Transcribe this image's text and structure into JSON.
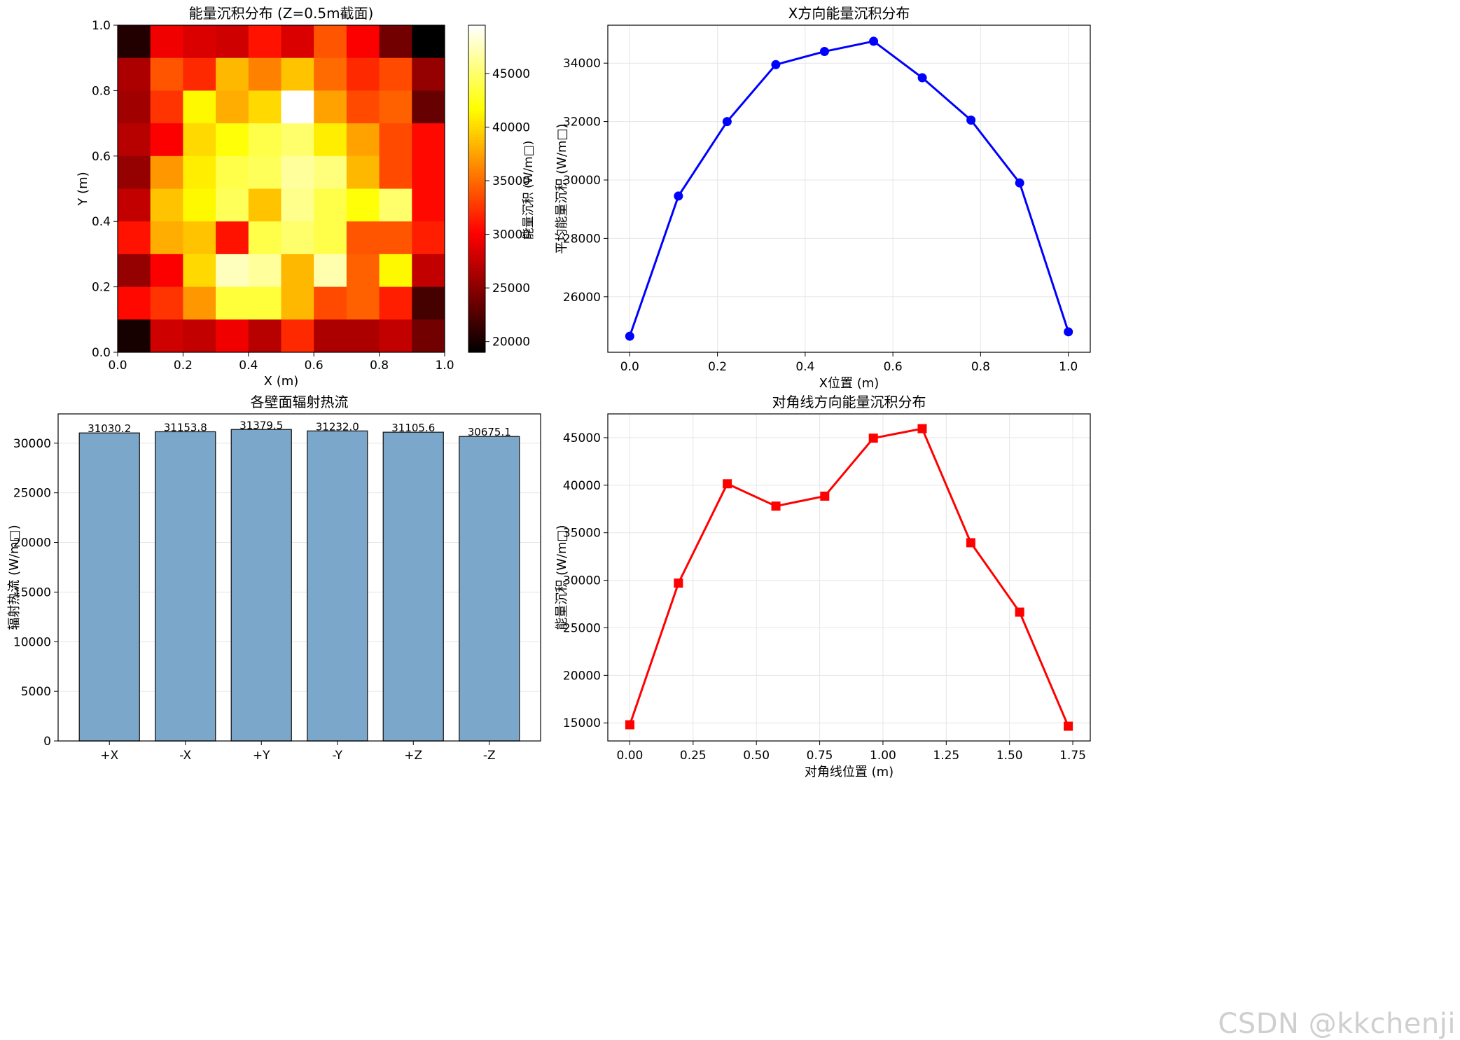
{
  "watermark": "CSDN @kkchenji",
  "chart_data": [
    {
      "type": "heatmap",
      "title": "能量沉积分布 (Z=0.5m截面)",
      "xlabel": "X (m)",
      "ylabel": "Y (m)",
      "xlim": [
        0,
        1
      ],
      "ylim": [
        0,
        1
      ],
      "xticks": [
        "0.0",
        "0.2",
        "0.4",
        "0.6",
        "0.8",
        "1.0"
      ],
      "yticks": [
        "0.0",
        "0.2",
        "0.4",
        "0.6",
        "0.8",
        "1.0"
      ],
      "colormap": "hot",
      "vmin": 19000,
      "vmax": 49500,
      "colorbar_label": "能量沉积 (W/m□)",
      "colorbar_ticks": [
        "20000",
        "25000",
        "30000",
        "35000",
        "40000",
        "45000"
      ],
      "rows_top_to_bottom": [
        [
          20500,
          29500,
          28500,
          28000,
          31000,
          28500,
          34000,
          30000,
          24000,
          19000
        ],
        [
          26500,
          34000,
          32000,
          38500,
          36000,
          39000,
          35000,
          32000,
          33500,
          25500
        ],
        [
          26000,
          32500,
          41500,
          38000,
          40000,
          49500,
          37500,
          33500,
          34500,
          23500
        ],
        [
          27000,
          30000,
          40000,
          42000,
          44000,
          45000,
          41000,
          37500,
          33500,
          30500
        ],
        [
          25500,
          37000,
          41000,
          44000,
          44500,
          46500,
          45500,
          38500,
          33500,
          30500
        ],
        [
          27500,
          39000,
          41500,
          44500,
          39000,
          46000,
          44000,
          42000,
          45000,
          30500
        ],
        [
          31000,
          38000,
          39000,
          31000,
          44000,
          45000,
          44000,
          34000,
          34000,
          31500
        ],
        [
          25500,
          30000,
          40000,
          47500,
          46500,
          38500,
          47000,
          34500,
          41500,
          27500
        ],
        [
          30500,
          32500,
          37000,
          43500,
          43500,
          38500,
          33500,
          34500,
          31500,
          22000
        ],
        [
          20000,
          28000,
          27500,
          29500,
          27000,
          32000,
          26500,
          26500,
          27500,
          24000
        ]
      ]
    },
    {
      "type": "line",
      "title": "X方向能量沉积分布",
      "xlabel": "X位置 (m)",
      "ylabel": "平均能量沉积 (W/m□)",
      "x": [
        0.0,
        0.111,
        0.222,
        0.333,
        0.444,
        0.556,
        0.667,
        0.778,
        0.889,
        1.0
      ],
      "series": [
        {
          "values": [
            24650,
            29450,
            32000,
            33950,
            34400,
            34750,
            33500,
            32050,
            29900,
            24800
          ],
          "color": "#0000ff",
          "marker": "circle"
        }
      ],
      "xlim": [
        -0.05,
        1.05
      ],
      "ylim": [
        24100,
        35300
      ],
      "xticks": [
        "0.0",
        "0.2",
        "0.4",
        "0.6",
        "0.8",
        "1.0"
      ],
      "yticks": [
        "26000",
        "28000",
        "30000",
        "32000",
        "34000"
      ],
      "grid": true
    },
    {
      "type": "bar",
      "title": "各壁面辐射热流",
      "xlabel": "",
      "ylabel": "辐射热流 (W/m□)",
      "categories": [
        "+X",
        "-X",
        "+Y",
        "-Y",
        "+Z",
        "-Z"
      ],
      "values": [
        31030.2,
        31153.8,
        31379.5,
        31232.0,
        31105.6,
        30675.1
      ],
      "value_labels": [
        "31030.2",
        "31153.8",
        "31379.5",
        "31232.0",
        "31105.6",
        "30675.1"
      ],
      "ylim": [
        0,
        32950
      ],
      "yticks": [
        "0",
        "5000",
        "10000",
        "15000",
        "20000",
        "25000",
        "30000"
      ],
      "bar_color": "#7ba7cb",
      "grid": true
    },
    {
      "type": "line",
      "title": "对角线方向能量沉积分布",
      "xlabel": "对角线位置 (m)",
      "ylabel": "能量沉积 (W/m□)",
      "x": [
        0.0,
        0.192,
        0.385,
        0.577,
        0.77,
        0.962,
        1.155,
        1.347,
        1.54,
        1.732
      ],
      "series": [
        {
          "values": [
            14800,
            29700,
            40150,
            37800,
            38850,
            44950,
            45950,
            33950,
            26650,
            14650
          ],
          "color": "#ff0000",
          "marker": "square"
        }
      ],
      "xlim": [
        -0.087,
        1.819
      ],
      "ylim": [
        13100,
        47500
      ],
      "xticks": [
        "0.00",
        "0.25",
        "0.50",
        "0.75",
        "1.00",
        "1.25",
        "1.50",
        "1.75"
      ],
      "yticks": [
        "15000",
        "20000",
        "25000",
        "30000",
        "35000",
        "40000",
        "45000"
      ],
      "grid": true
    }
  ]
}
